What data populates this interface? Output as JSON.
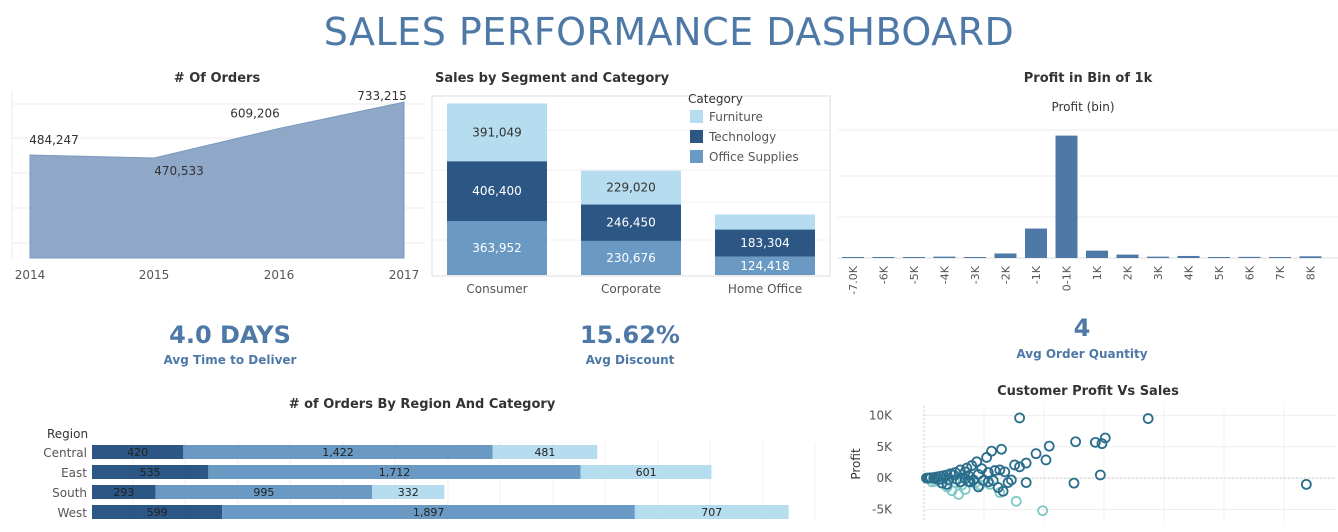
{
  "title": "SALES PERFORMANCE DASHBOARD",
  "colors": {
    "furniture": "#b6dcf0",
    "technology": "#2c5784",
    "office": "#6a9ac4",
    "area": "#8fa8c8",
    "accent": "#4e79a7",
    "scatter_dark": "#2a6e8c",
    "scatter_light": "#7ec9c4"
  },
  "kpis": [
    {
      "value": "4.0 DAYS",
      "label": "Avg Time to Deliver"
    },
    {
      "value": "15.62%",
      "label": "Avg Discount"
    },
    {
      "value": "4",
      "label": "Avg Order Quantity"
    }
  ],
  "chart_data": [
    {
      "id": "orders",
      "type": "area",
      "title": "# Of Orders",
      "x": [
        "2014",
        "2015",
        "2016",
        "2017"
      ],
      "values": [
        484247,
        470533,
        609206,
        733215
      ],
      "value_labels": [
        "484,247",
        "470,533",
        "609,206",
        "733,215"
      ],
      "ylim": [
        0,
        800000
      ]
    },
    {
      "id": "segment",
      "type": "bar",
      "stacked": true,
      "title": "Sales by Segment and Category",
      "categories": [
        "Consumer",
        "Corporate",
        "Home Office"
      ],
      "legend_title": "Category",
      "legend_position": "top-right",
      "series": [
        {
          "name": "Office Supplies",
          "values": [
            363952,
            230676,
            124418
          ],
          "labels": [
            "363,952",
            "230,676",
            "124,418"
          ]
        },
        {
          "name": "Technology",
          "values": [
            406400,
            246450,
            183304
          ],
          "labels": [
            "406,400",
            "246,450",
            "183,304"
          ]
        },
        {
          "name": "Furniture",
          "values": [
            391049,
            229020,
            102000
          ],
          "labels": [
            "391,049",
            "229,020",
            ""
          ]
        }
      ],
      "ylim": [
        0,
        1220000
      ]
    },
    {
      "id": "profitbin",
      "type": "bar",
      "title": "Profit in Bin of 1k",
      "xlabel": "Profit (bin)",
      "categories": [
        "-7.0K",
        "-6K",
        "-5K",
        "-4K",
        "-3K",
        "-2K",
        "-1K",
        "0-1K",
        "1K",
        "2K",
        "3K",
        "4K",
        "5K",
        "6K",
        "7K",
        "8K"
      ],
      "values": [
        1,
        1,
        1,
        12,
        1,
        40,
        260,
        1080,
        65,
        30,
        12,
        18,
        8,
        10,
        1,
        15
      ],
      "ylim": [
        0,
        1200
      ]
    },
    {
      "id": "region",
      "type": "bar",
      "orientation": "horizontal",
      "stacked": true,
      "title": "# of Orders By Region And Category",
      "axis_title": "Region",
      "categories": [
        "Central",
        "East",
        "South",
        "West"
      ],
      "series": [
        {
          "name": "Technology",
          "values": [
            420,
            535,
            293,
            599
          ],
          "labels": [
            "420",
            "535",
            "293",
            "599"
          ]
        },
        {
          "name": "Office Supplies",
          "values": [
            1422,
            1712,
            995,
            1897
          ],
          "labels": [
            "1,422",
            "1,712",
            "995",
            "1,897"
          ]
        },
        {
          "name": "Furniture",
          "values": [
            481,
            601,
            332,
            707
          ],
          "labels": [
            "481",
            "601",
            "332",
            "707"
          ]
        }
      ]
    },
    {
      "id": "scatter",
      "type": "scatter",
      "title": "Customer Profit Vs Sales",
      "ylabel": "Profit",
      "yticks": [
        "10K",
        "5K",
        "0K",
        "-5K"
      ],
      "ylim": [
        -7000,
        11500
      ],
      "xlim": [
        0,
        25000
      ],
      "points": [
        [
          5800,
          9600
        ],
        [
          13600,
          9500
        ],
        [
          11000,
          6400
        ],
        [
          10400,
          5700
        ],
        [
          10800,
          5500
        ],
        [
          9200,
          5800
        ],
        [
          7600,
          5100
        ],
        [
          4700,
          4600
        ],
        [
          4100,
          4300
        ],
        [
          6800,
          3900
        ],
        [
          7400,
          2900
        ],
        [
          6200,
          2400
        ],
        [
          5500,
          2100
        ],
        [
          5800,
          1800
        ],
        [
          4600,
          1300
        ],
        [
          10700,
          500
        ],
        [
          3800,
          3300
        ],
        [
          3200,
          2600
        ],
        [
          2900,
          2000
        ],
        [
          2600,
          1600
        ],
        [
          2200,
          1300
        ],
        [
          1900,
          900
        ],
        [
          1600,
          700
        ],
        [
          1400,
          500
        ],
        [
          1200,
          400
        ],
        [
          1000,
          300
        ],
        [
          800,
          200
        ],
        [
          600,
          100
        ],
        [
          400,
          50
        ],
        [
          300,
          0
        ],
        [
          200,
          0
        ],
        [
          150,
          0
        ],
        [
          2700,
          400
        ],
        [
          3300,
          600
        ],
        [
          3900,
          900
        ],
        [
          4300,
          1200
        ],
        [
          4900,
          1000
        ],
        [
          3500,
          1500
        ],
        [
          2500,
          1000
        ],
        [
          1800,
          500
        ],
        [
          23200,
          -1000
        ],
        [
          6200,
          -700
        ],
        [
          4500,
          -1500
        ],
        [
          9100,
          -800
        ],
        [
          4800,
          -2100
        ],
        [
          3300,
          -1400
        ],
        [
          5100,
          -700
        ],
        [
          2800,
          -600
        ],
        [
          1400,
          -1000
        ],
        [
          1100,
          -800
        ],
        [
          1500,
          -300
        ],
        [
          2000,
          -200
        ],
        [
          2500,
          -100
        ],
        [
          3000,
          -300
        ],
        [
          900,
          -200
        ],
        [
          700,
          -100
        ],
        [
          3900,
          -600
        ],
        [
          4200,
          -400
        ],
        [
          5300,
          -300
        ],
        [
          2200,
          -600
        ],
        [
          2700,
          -500
        ],
        [
          3600,
          -400
        ]
      ],
      "points_light": [
        [
          7200,
          -5200
        ],
        [
          5600,
          -3700
        ],
        [
          4600,
          -2300
        ],
        [
          1400,
          -1400
        ],
        [
          2500,
          -1800
        ],
        [
          1700,
          -2000
        ],
        [
          2100,
          -2600
        ],
        [
          700,
          -500
        ],
        [
          1100,
          -200
        ],
        [
          1900,
          -700
        ],
        [
          3100,
          -800
        ],
        [
          4000,
          -1000
        ],
        [
          2300,
          -1100
        ],
        [
          500,
          -600
        ],
        [
          3400,
          -1100
        ]
      ]
    }
  ]
}
